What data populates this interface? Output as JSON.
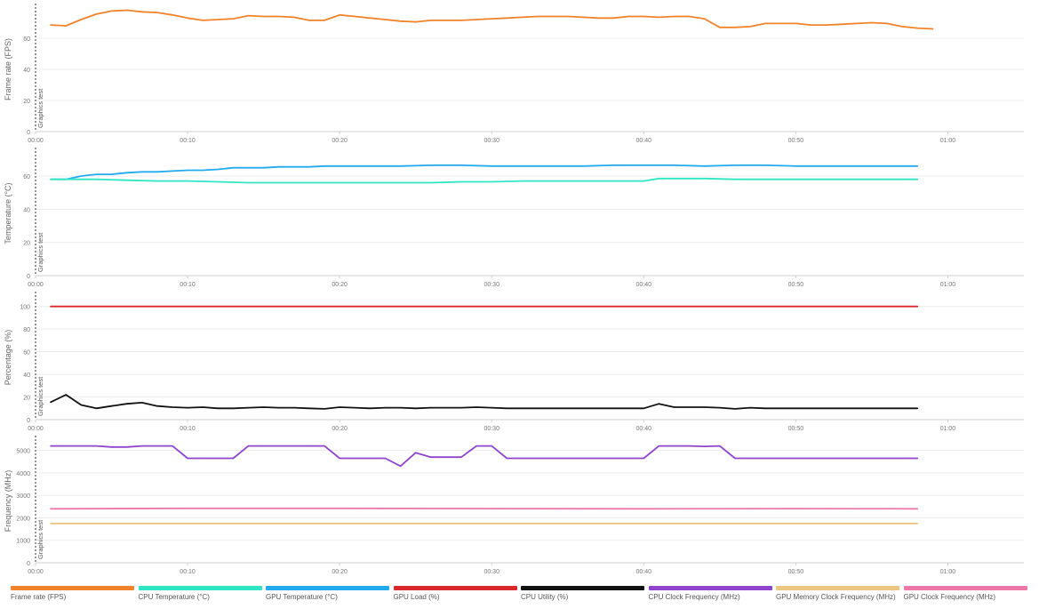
{
  "annotation_label": "Graphics test",
  "colors": {
    "fps": "#f0832a",
    "cpu_temp": "#2ee6c4",
    "gpu_temp": "#22aaee",
    "gpu_load": "#d9282c",
    "cpu_util": "#111111",
    "cpu_clock": "#8e44cc",
    "gpu_mem_clock": "#ecc680",
    "gpu_clock": "#ee77aa"
  },
  "legend": [
    {
      "label": "Frame rate (FPS)",
      "color": "#f0832a"
    },
    {
      "label": "CPU Temperature (°C)",
      "color": "#2ee6c4"
    },
    {
      "label": "GPU Temperature (°C)",
      "color": "#22aaee"
    },
    {
      "label": "GPU Load (%)",
      "color": "#d9282c"
    },
    {
      "label": "CPU Utility (%)",
      "color": "#111111"
    },
    {
      "label": "CPU Clock Frequency (MHz)",
      "color": "#8e44cc"
    },
    {
      "label": "GPU Memory Clock Frequency (MHz)",
      "color": "#ecc680"
    },
    {
      "label": "GPU Clock Frequency (MHz)",
      "color": "#ee77aa"
    }
  ],
  "chart_data": [
    {
      "type": "line",
      "ylabel": "Frame rate (FPS)",
      "ylim": [
        0,
        80
      ],
      "yticks": [
        "0",
        "20",
        "40",
        "60"
      ],
      "xlim_seconds": [
        0,
        65
      ],
      "xticks": [
        "00:00",
        "00:10",
        "00:20",
        "00:30",
        "00:40",
        "00:50",
        "01:00"
      ],
      "annotation_at": "00:00",
      "grid": true,
      "series": [
        {
          "name": "Frame rate (FPS)",
          "color": "#f0832a",
          "points": [
            [
              1,
              68.5
            ],
            [
              2,
              68
            ],
            [
              3,
              72
            ],
            [
              4,
              75.5
            ],
            [
              5,
              77.5
            ],
            [
              6,
              78
            ],
            [
              7,
              77
            ],
            [
              8,
              76.5
            ],
            [
              9,
              75
            ],
            [
              10,
              73
            ],
            [
              11,
              71.5
            ],
            [
              12,
              72
            ],
            [
              13,
              72.5
            ],
            [
              14,
              74.5
            ],
            [
              15,
              74
            ],
            [
              16,
              74
            ],
            [
              17,
              73.5
            ],
            [
              18,
              71.5
            ],
            [
              19,
              71.5
            ],
            [
              20,
              75
            ],
            [
              21,
              74
            ],
            [
              22,
              73
            ],
            [
              23,
              72
            ],
            [
              24,
              71
            ],
            [
              25,
              70.5
            ],
            [
              26,
              71.5
            ],
            [
              27,
              71.5
            ],
            [
              28,
              71.5
            ],
            [
              29,
              72
            ],
            [
              30,
              72.5
            ],
            [
              31,
              73
            ],
            [
              32,
              73.5
            ],
            [
              33,
              74
            ],
            [
              34,
              74
            ],
            [
              35,
              74
            ],
            [
              36,
              73.5
            ],
            [
              37,
              73
            ],
            [
              38,
              73
            ],
            [
              39,
              74
            ],
            [
              40,
              74
            ],
            [
              41,
              73.5
            ],
            [
              42,
              74
            ],
            [
              43,
              74
            ],
            [
              44,
              72.5
            ],
            [
              45,
              67
            ],
            [
              46,
              67
            ],
            [
              47,
              67.5
            ],
            [
              48,
              69.5
            ],
            [
              49,
              69.5
            ],
            [
              50,
              69.5
            ],
            [
              51,
              68.5
            ],
            [
              52,
              68.5
            ],
            [
              53,
              69
            ],
            [
              54,
              69.5
            ],
            [
              55,
              70
            ],
            [
              56,
              69.5
            ],
            [
              57,
              67.5
            ],
            [
              58,
              66.5
            ],
            [
              59,
              66
            ]
          ]
        }
      ]
    },
    {
      "type": "line",
      "ylabel": "Temperature (°C)",
      "ylim": [
        0,
        75
      ],
      "yticks": [
        "0",
        "20",
        "40",
        "60"
      ],
      "xlim_seconds": [
        0,
        65
      ],
      "xticks": [
        "00:00",
        "00:10",
        "00:20",
        "00:30",
        "00:40",
        "00:50",
        "01:00"
      ],
      "annotation_at": "00:00",
      "grid": true,
      "series": [
        {
          "name": "GPU Temperature (°C)",
          "color": "#22aaee",
          "points": [
            [
              1,
              58
            ],
            [
              2,
              58
            ],
            [
              3,
              60
            ],
            [
              4,
              61
            ],
            [
              5,
              61
            ],
            [
              6,
              62
            ],
            [
              7,
              62.5
            ],
            [
              8,
              62.5
            ],
            [
              9,
              63
            ],
            [
              10,
              63.5
            ],
            [
              11,
              63.5
            ],
            [
              12,
              64
            ],
            [
              13,
              65
            ],
            [
              14,
              65
            ],
            [
              15,
              65
            ],
            [
              16,
              65.5
            ],
            [
              17,
              65.5
            ],
            [
              18,
              65.5
            ],
            [
              19,
              66
            ],
            [
              20,
              66
            ],
            [
              22,
              66
            ],
            [
              24,
              66
            ],
            [
              26,
              66.5
            ],
            [
              28,
              66.5
            ],
            [
              30,
              66
            ],
            [
              32,
              66
            ],
            [
              34,
              66
            ],
            [
              36,
              66
            ],
            [
              38,
              66.5
            ],
            [
              40,
              66.5
            ],
            [
              42,
              66.5
            ],
            [
              44,
              66
            ],
            [
              46,
              66.5
            ],
            [
              48,
              66.5
            ],
            [
              50,
              66
            ],
            [
              52,
              66
            ],
            [
              54,
              66
            ],
            [
              56,
              66
            ],
            [
              58,
              66
            ]
          ]
        },
        {
          "name": "CPU Temperature (°C)",
          "color": "#2ee6c4",
          "points": [
            [
              1,
              58
            ],
            [
              2,
              58
            ],
            [
              4,
              58
            ],
            [
              6,
              57.5
            ],
            [
              8,
              57
            ],
            [
              10,
              57
            ],
            [
              12,
              56.5
            ],
            [
              14,
              56
            ],
            [
              16,
              56
            ],
            [
              18,
              56
            ],
            [
              20,
              56
            ],
            [
              22,
              56
            ],
            [
              24,
              56
            ],
            [
              26,
              56
            ],
            [
              28,
              56.5
            ],
            [
              30,
              56.5
            ],
            [
              32,
              57
            ],
            [
              34,
              57
            ],
            [
              36,
              57
            ],
            [
              38,
              57
            ],
            [
              40,
              57
            ],
            [
              41,
              58.5
            ],
            [
              42,
              58.5
            ],
            [
              44,
              58.5
            ],
            [
              46,
              58
            ],
            [
              48,
              58
            ],
            [
              50,
              58
            ],
            [
              52,
              58
            ],
            [
              54,
              58
            ],
            [
              56,
              58
            ],
            [
              58,
              58
            ]
          ]
        }
      ]
    },
    {
      "type": "line",
      "ylabel": "Percentage (%)",
      "ylim": [
        0,
        110
      ],
      "yticks": [
        "0",
        "20",
        "40",
        "60",
        "80",
        "100"
      ],
      "xlim_seconds": [
        0,
        65
      ],
      "xticks": [
        "00:00",
        "00:10",
        "00:20",
        "00:30",
        "00:40",
        "00:50",
        "01:00"
      ],
      "annotation_at": "00:00",
      "grid": true,
      "series": [
        {
          "name": "GPU Load (%)",
          "color": "#d9282c",
          "points": [
            [
              1,
              100
            ],
            [
              58,
              100
            ]
          ]
        },
        {
          "name": "CPU Utility (%)",
          "color": "#111111",
          "points": [
            [
              1,
              15.5
            ],
            [
              2,
              22
            ],
            [
              3,
              13
            ],
            [
              4,
              10
            ],
            [
              5,
              12
            ],
            [
              6,
              14
            ],
            [
              7,
              15
            ],
            [
              8,
              12
            ],
            [
              9,
              11
            ],
            [
              10,
              10.5
            ],
            [
              11,
              11
            ],
            [
              12,
              10
            ],
            [
              13,
              10
            ],
            [
              14,
              10.5
            ],
            [
              15,
              11
            ],
            [
              16,
              10.5
            ],
            [
              17,
              10.5
            ],
            [
              18,
              10
            ],
            [
              19,
              9.5
            ],
            [
              20,
              11
            ],
            [
              21,
              10.5
            ],
            [
              22,
              10
            ],
            [
              23,
              10.5
            ],
            [
              24,
              10.5
            ],
            [
              25,
              10
            ],
            [
              26,
              10.5
            ],
            [
              27,
              10.5
            ],
            [
              28,
              10.5
            ],
            [
              29,
              11
            ],
            [
              30,
              10.5
            ],
            [
              31,
              10
            ],
            [
              32,
              10
            ],
            [
              33,
              10
            ],
            [
              34,
              10
            ],
            [
              35,
              10
            ],
            [
              36,
              10
            ],
            [
              37,
              10
            ],
            [
              38,
              10
            ],
            [
              39,
              10
            ],
            [
              40,
              10
            ],
            [
              41,
              14
            ],
            [
              42,
              11
            ],
            [
              43,
              11
            ],
            [
              44,
              11
            ],
            [
              45,
              10.5
            ],
            [
              46,
              9.5
            ],
            [
              47,
              10.5
            ],
            [
              48,
              10
            ],
            [
              49,
              10
            ],
            [
              50,
              10
            ],
            [
              51,
              10
            ],
            [
              52,
              10
            ],
            [
              53,
              10
            ],
            [
              54,
              10
            ],
            [
              55,
              10
            ],
            [
              56,
              10
            ],
            [
              57,
              10
            ],
            [
              58,
              10
            ]
          ]
        }
      ]
    },
    {
      "type": "line",
      "ylabel": "Frequency (MHz)",
      "ylim": [
        0,
        5500
      ],
      "yticks": [
        "0",
        "1000",
        "2000",
        "3000",
        "4000",
        "5000"
      ],
      "xlim_seconds": [
        0,
        65
      ],
      "xticks": [
        "00:00",
        "00:10",
        "00:20",
        "00:30",
        "00:40",
        "00:50",
        "01:00"
      ],
      "annotation_at": "00:00",
      "grid": true,
      "series": [
        {
          "name": "CPU Clock Frequency (MHz)",
          "color": "#8e44cc",
          "points": [
            [
              1,
              5200
            ],
            [
              2,
              5200
            ],
            [
              3,
              5200
            ],
            [
              4,
              5200
            ],
            [
              5,
              5150
            ],
            [
              6,
              5150
            ],
            [
              7,
              5200
            ],
            [
              8,
              5200
            ],
            [
              9,
              5200
            ],
            [
              10,
              4650
            ],
            [
              11,
              4650
            ],
            [
              12,
              4650
            ],
            [
              13,
              4650
            ],
            [
              14,
              5200
            ],
            [
              15,
              5200
            ],
            [
              16,
              5200
            ],
            [
              17,
              5200
            ],
            [
              18,
              5200
            ],
            [
              19,
              5200
            ],
            [
              20,
              4650
            ],
            [
              21,
              4650
            ],
            [
              22,
              4650
            ],
            [
              23,
              4650
            ],
            [
              24,
              4300
            ],
            [
              25,
              4900
            ],
            [
              26,
              4700
            ],
            [
              27,
              4700
            ],
            [
              28,
              4700
            ],
            [
              29,
              5200
            ],
            [
              30,
              5200
            ],
            [
              31,
              4650
            ],
            [
              32,
              4650
            ],
            [
              34,
              4650
            ],
            [
              36,
              4650
            ],
            [
              38,
              4650
            ],
            [
              40,
              4650
            ],
            [
              41,
              5200
            ],
            [
              42,
              5200
            ],
            [
              43,
              5200
            ],
            [
              44,
              5180
            ],
            [
              45,
              5200
            ],
            [
              46,
              4650
            ],
            [
              48,
              4650
            ],
            [
              50,
              4650
            ],
            [
              52,
              4650
            ],
            [
              54,
              4650
            ],
            [
              56,
              4650
            ],
            [
              58,
              4650
            ]
          ]
        },
        {
          "name": "GPU Clock Frequency (MHz)",
          "color": "#ee77aa",
          "points": [
            [
              1,
              2400
            ],
            [
              10,
              2420
            ],
            [
              20,
              2420
            ],
            [
              30,
              2410
            ],
            [
              40,
              2400
            ],
            [
              50,
              2410
            ],
            [
              58,
              2400
            ]
          ]
        },
        {
          "name": "GPU Memory Clock Frequency (MHz)",
          "color": "#ecc680",
          "points": [
            [
              1,
              1750
            ],
            [
              58,
              1750
            ]
          ]
        }
      ]
    }
  ]
}
